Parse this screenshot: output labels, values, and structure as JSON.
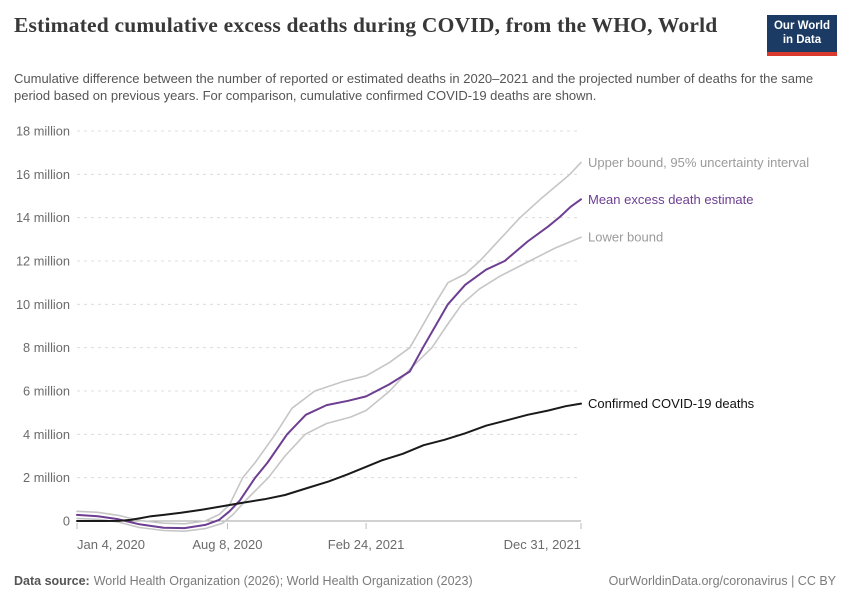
{
  "header": {
    "title": "Estimated cumulative excess deaths during COVID, from the WHO, World",
    "subtitle": "Cumulative difference between the number of reported or estimated deaths in 2020–2021 and the projected number of deaths for the same period based on previous years. For comparison, cumulative confirmed COVID-19 deaths are shown."
  },
  "logo": {
    "line1": "Our World",
    "line2": "in Data",
    "bg_color": "#1b3a64",
    "accent_color": "#d93a2d"
  },
  "chart_data": {
    "type": "line",
    "title": "Estimated cumulative excess deaths during COVID, from the WHO, World",
    "grid": "horizontal-dashed",
    "grid_color": "#dcdcdc",
    "axis_color": "#a3a3a3",
    "tick_color": "#bbbbbb",
    "legend_position": "end-of-line-labels",
    "x_axis": {
      "domain_days": [
        0,
        727
      ],
      "ticks": [
        {
          "day": 0,
          "label": "Jan 4, 2020"
        },
        {
          "day": 217,
          "label": "Aug 8, 2020"
        },
        {
          "day": 417,
          "label": "Feb 24, 2021"
        },
        {
          "day": 727,
          "label": "Dec 31, 2021"
        }
      ]
    },
    "y_axis": {
      "unit": "million",
      "ylim": [
        0,
        18
      ],
      "ticks": [
        {
          "value": 0,
          "label": "0"
        },
        {
          "value": 2,
          "label": "2 million"
        },
        {
          "value": 4,
          "label": "4 million"
        },
        {
          "value": 6,
          "label": "6 million"
        },
        {
          "value": 8,
          "label": "8 million"
        },
        {
          "value": 10,
          "label": "10 million"
        },
        {
          "value": 12,
          "label": "12 million"
        },
        {
          "value": 14,
          "label": "14 million"
        },
        {
          "value": 16,
          "label": "16 million"
        },
        {
          "value": 18,
          "label": "18 million"
        }
      ]
    },
    "series": [
      {
        "name": "Upper bound, 95% uncertainty interval",
        "color": "#c6c6c6",
        "label_color": "#9b9b9b",
        "width": 1.6,
        "points": [
          [
            0,
            0.45
          ],
          [
            30,
            0.4
          ],
          [
            60,
            0.26
          ],
          [
            90,
            0.03
          ],
          [
            125,
            -0.1
          ],
          [
            155,
            -0.13
          ],
          [
            185,
            0.0
          ],
          [
            205,
            0.3
          ],
          [
            220,
            0.75
          ],
          [
            239,
            2.0
          ],
          [
            257,
            2.7
          ],
          [
            286,
            4.0
          ],
          [
            310,
            5.2
          ],
          [
            343,
            6.0
          ],
          [
            385,
            6.45
          ],
          [
            417,
            6.7
          ],
          [
            450,
            7.3
          ],
          [
            480,
            8.0
          ],
          [
            500,
            9.1
          ],
          [
            516,
            10.0
          ],
          [
            535,
            11.0
          ],
          [
            560,
            11.4
          ],
          [
            581,
            12.0
          ],
          [
            610,
            13.0
          ],
          [
            639,
            14.0
          ],
          [
            670,
            14.9
          ],
          [
            700,
            15.7
          ],
          [
            711,
            16.0
          ],
          [
            727,
            16.55
          ]
        ]
      },
      {
        "name": "Lower bound",
        "color": "#c6c6c6",
        "label_color": "#9b9b9b",
        "width": 1.6,
        "points": [
          [
            0,
            0.12
          ],
          [
            30,
            0.08
          ],
          [
            60,
            -0.05
          ],
          [
            90,
            -0.3
          ],
          [
            125,
            -0.44
          ],
          [
            155,
            -0.47
          ],
          [
            185,
            -0.35
          ],
          [
            210,
            -0.1
          ],
          [
            225,
            0.3
          ],
          [
            245,
            1.0
          ],
          [
            276,
            2.0
          ],
          [
            300,
            3.0
          ],
          [
            329,
            4.0
          ],
          [
            360,
            4.5
          ],
          [
            395,
            4.8
          ],
          [
            417,
            5.1
          ],
          [
            451,
            6.0
          ],
          [
            480,
            7.0
          ],
          [
            512,
            8.0
          ],
          [
            533,
            9.0
          ],
          [
            555,
            10.0
          ],
          [
            580,
            10.7
          ],
          [
            610,
            11.3
          ],
          [
            653,
            12.0
          ],
          [
            690,
            12.6
          ],
          [
            727,
            13.1
          ]
        ]
      },
      {
        "name": "Mean excess death estimate",
        "color": "#6d3e91",
        "label_color": "#6d3e91",
        "width": 2,
        "points": [
          [
            0,
            0.28
          ],
          [
            30,
            0.22
          ],
          [
            60,
            0.08
          ],
          [
            90,
            -0.15
          ],
          [
            125,
            -0.31
          ],
          [
            155,
            -0.33
          ],
          [
            185,
            -0.18
          ],
          [
            205,
            0.05
          ],
          [
            220,
            0.45
          ],
          [
            235,
            0.95
          ],
          [
            257,
            2.0
          ],
          [
            275,
            2.7
          ],
          [
            303,
            4.0
          ],
          [
            330,
            4.9
          ],
          [
            360,
            5.35
          ],
          [
            391,
            5.55
          ],
          [
            417,
            5.75
          ],
          [
            450,
            6.3
          ],
          [
            480,
            6.9
          ],
          [
            499,
            8.0
          ],
          [
            517,
            9.0
          ],
          [
            535,
            10.0
          ],
          [
            560,
            10.9
          ],
          [
            590,
            11.6
          ],
          [
            617,
            12.0
          ],
          [
            650,
            12.9
          ],
          [
            680,
            13.6
          ],
          [
            697,
            14.05
          ],
          [
            712,
            14.5
          ],
          [
            727,
            14.85
          ]
        ]
      },
      {
        "name": "Confirmed COVID-19 deaths",
        "color": "#1a1a1a",
        "label_color": "#111111",
        "width": 2,
        "points": [
          [
            0,
            0.0
          ],
          [
            40,
            0.001
          ],
          [
            60,
            0.005
          ],
          [
            77,
            0.05
          ],
          [
            90,
            0.12
          ],
          [
            107,
            0.22
          ],
          [
            125,
            0.28
          ],
          [
            150,
            0.38
          ],
          [
            180,
            0.52
          ],
          [
            217,
            0.72
          ],
          [
            240,
            0.85
          ],
          [
            270,
            1.0
          ],
          [
            300,
            1.2
          ],
          [
            330,
            1.5
          ],
          [
            363,
            1.83
          ],
          [
            390,
            2.15
          ],
          [
            417,
            2.5
          ],
          [
            440,
            2.8
          ],
          [
            470,
            3.1
          ],
          [
            500,
            3.5
          ],
          [
            530,
            3.75
          ],
          [
            560,
            4.05
          ],
          [
            590,
            4.4
          ],
          [
            620,
            4.65
          ],
          [
            650,
            4.9
          ],
          [
            680,
            5.1
          ],
          [
            705,
            5.3
          ],
          [
            727,
            5.42
          ]
        ]
      }
    ]
  },
  "footer": {
    "datasource_label": "Data source:",
    "datasource": "World Health Organization (2026); World Health Organization (2023)",
    "credit": "OurWorldinData.org/coronavirus | CC BY"
  }
}
